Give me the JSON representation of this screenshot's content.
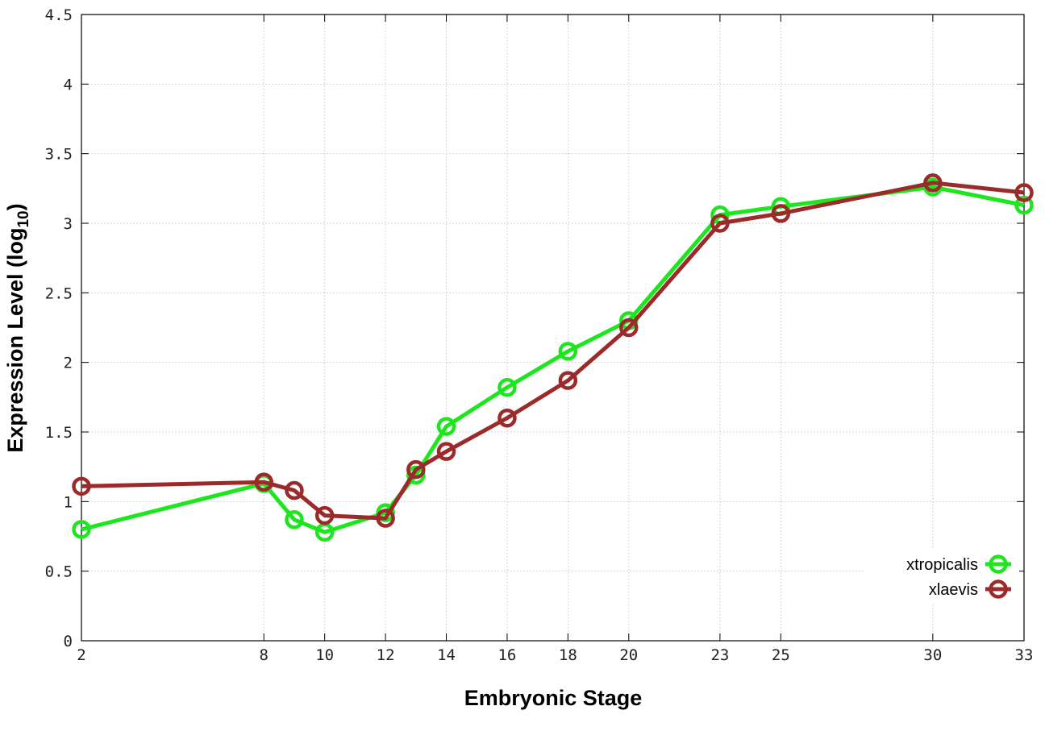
{
  "chart_data": {
    "type": "line",
    "xlabel": "Embryonic Stage",
    "ylabel_main": "Expression Level (log",
    "ylabel_sub": "10",
    "ylabel_close": ")",
    "x_ticks": [
      2,
      8,
      10,
      12,
      14,
      16,
      18,
      20,
      23,
      25,
      30,
      33
    ],
    "y_ticks": [
      "0",
      "0.5",
      "1",
      "1.5",
      "2",
      "2.5",
      "3",
      "3.5",
      "4",
      "4.5"
    ],
    "xlim": [
      2,
      33
    ],
    "ylim": [
      0,
      4.5
    ],
    "grid": true,
    "legend_position": "bottom-right",
    "x": [
      2,
      8,
      9,
      10,
      12,
      13,
      14,
      16,
      18,
      20,
      23,
      25,
      30,
      33
    ],
    "series": [
      {
        "name": "xtropicalis",
        "color": "#1ee61e",
        "values": [
          0.8,
          1.13,
          0.87,
          0.78,
          0.92,
          1.19,
          1.54,
          1.82,
          2.08,
          2.3,
          3.06,
          3.12,
          3.26,
          3.13
        ]
      },
      {
        "name": "xlaevis",
        "color": "#9b2b2b",
        "values": [
          1.11,
          1.14,
          1.08,
          0.9,
          0.88,
          1.23,
          1.36,
          1.6,
          1.87,
          2.25,
          3.0,
          3.07,
          3.29,
          3.22
        ]
      }
    ]
  }
}
